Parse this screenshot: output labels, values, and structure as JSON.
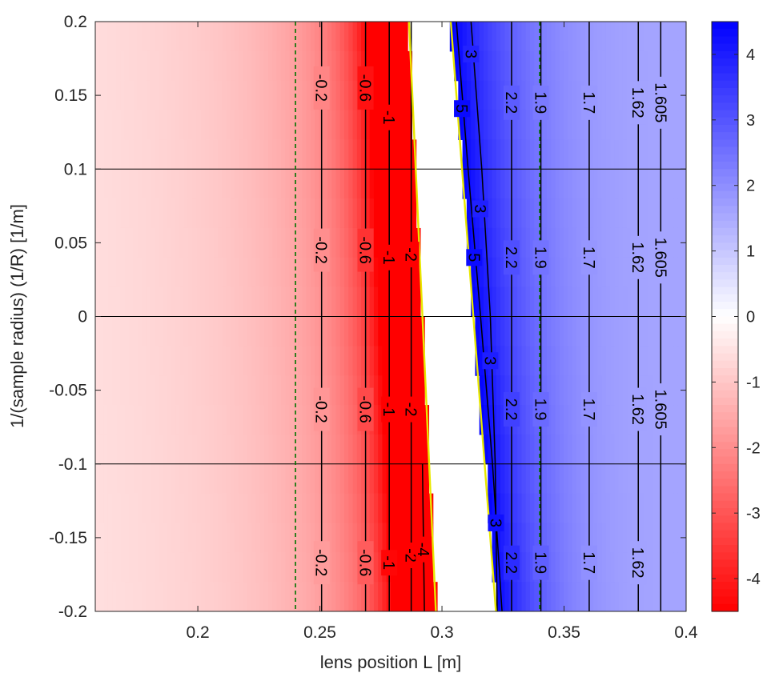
{
  "chart_data": {
    "type": "heatmap",
    "xlabel": "lens position L  [m]",
    "ylabel": "1/(sample radius) (1/R)  [1/m]",
    "xlim": [
      0.158,
      0.4
    ],
    "ylim": [
      -0.2,
      0.2
    ],
    "x_ticks": [
      0.2,
      0.25,
      0.3,
      0.35,
      0.4
    ],
    "x_tick_labels": [
      "0.2",
      "0.25",
      "0.3",
      "0.35",
      "0.4"
    ],
    "y_ticks": [
      0.2,
      0.15,
      0.1,
      0.05,
      0,
      -0.05,
      -0.1,
      -0.15,
      -0.2
    ],
    "y_tick_labels": [
      "0.2",
      "0.15",
      "0.1",
      "0.05",
      "0",
      "-0.05",
      "-0.1",
      "-0.15",
      "-0.2"
    ],
    "colorbar": {
      "min": -4.5,
      "max": 4.5,
      "ticks": [
        4,
        3,
        2,
        1,
        0,
        -1,
        -2,
        -3,
        -4
      ],
      "tick_labels": [
        "4",
        "3",
        "2",
        "1",
        "0",
        "-1",
        "-2",
        "-3",
        "-4"
      ],
      "colors": {
        "negative": "#ff0000",
        "zero": "#ffffff",
        "positive": "#0000ff"
      }
    },
    "horizontal_reference_lines": [
      0.1,
      0,
      -0.1
    ],
    "vertical_dashed_lines": [
      0.24,
      0.34
    ],
    "singular_boundaries": [
      {
        "points": [
          [
            0.2865,
            0.2
          ],
          [
            0.2975,
            -0.2
          ]
        ],
        "color": "#e8e800"
      },
      {
        "points": [
          [
            0.3036,
            0.2
          ],
          [
            0.3221,
            -0.2
          ]
        ],
        "color": "#e8e800"
      }
    ],
    "contour_levels_negative": [
      -0.2,
      -0.6,
      -1,
      -2,
      -4
    ],
    "contour_levels_positive": [
      5,
      3,
      2.2,
      1.9,
      1.7,
      1.62,
      1.605
    ],
    "contour_lines": [
      {
        "points": [
          [
            0.2507,
            0.2
          ],
          [
            0.2507,
            -0.2
          ]
        ]
      },
      {
        "points": [
          [
            0.2687,
            0.2
          ],
          [
            0.2687,
            -0.2
          ]
        ]
      },
      {
        "points": [
          [
            0.2784,
            0.2
          ],
          [
            0.2784,
            -0.2
          ]
        ]
      },
      {
        "points": [
          [
            0.2874,
            0.2
          ],
          [
            0.2874,
            -0.2
          ]
        ]
      },
      {
        "points": [
          [
            0.292,
            -0.1
          ],
          [
            0.2928,
            -0.2
          ]
        ]
      },
      {
        "points": [
          [
            0.3059,
            0.2
          ],
          [
            0.3107,
            0.1
          ],
          [
            0.3158,
            0
          ],
          [
            0.3207,
            -0.1
          ],
          [
            0.3246,
            -0.2
          ]
        ]
      },
      {
        "points": [
          [
            0.3119,
            0.2
          ],
          [
            0.3163,
            0.1
          ],
          [
            0.3198,
            0
          ],
          [
            0.3218,
            -0.1
          ],
          [
            0.3226,
            -0.2
          ]
        ]
      },
      {
        "points": [
          [
            0.3285,
            0.2
          ],
          [
            0.3285,
            -0.2
          ]
        ]
      },
      {
        "points": [
          [
            0.3405,
            0.2
          ],
          [
            0.3405,
            -0.2
          ]
        ]
      },
      {
        "points": [
          [
            0.3603,
            0.2
          ],
          [
            0.3603,
            -0.2
          ]
        ]
      },
      {
        "points": [
          [
            0.3804,
            0.2
          ],
          [
            0.3804,
            -0.2
          ]
        ]
      },
      {
        "points": [
          [
            0.3896,
            0.2
          ],
          [
            0.3896,
            -0.2
          ]
        ]
      }
    ],
    "contour_labels": [
      {
        "text": "-0.2",
        "x": 0.2507,
        "y": 0.155
      },
      {
        "text": "-0.6",
        "x": 0.2687,
        "y": 0.155
      },
      {
        "text": "-1",
        "x": 0.2784,
        "y": 0.135
      },
      {
        "text": "3",
        "x": 0.3119,
        "y": 0.178
      },
      {
        "text": "5",
        "x": 0.3082,
        "y": 0.141
      },
      {
        "text": "2.2",
        "x": 0.3285,
        "y": 0.145
      },
      {
        "text": "1.9",
        "x": 0.3405,
        "y": 0.145
      },
      {
        "text": "1.7",
        "x": 0.3603,
        "y": 0.145
      },
      {
        "text": "1.62",
        "x": 0.3804,
        "y": 0.145
      },
      {
        "text": "1.605",
        "x": 0.3896,
        "y": 0.145
      },
      {
        "text": "3",
        "x": 0.3157,
        "y": 0.073
      },
      {
        "text": "-0.2",
        "x": 0.2507,
        "y": 0.045
      },
      {
        "text": "-0.6",
        "x": 0.2687,
        "y": 0.045
      },
      {
        "text": "-1",
        "x": 0.2784,
        "y": 0.04
      },
      {
        "text": "-2",
        "x": 0.2874,
        "y": 0.042
      },
      {
        "text": "5",
        "x": 0.3132,
        "y": 0.04
      },
      {
        "text": "2.2",
        "x": 0.3285,
        "y": 0.04
      },
      {
        "text": "1.9",
        "x": 0.3405,
        "y": 0.04
      },
      {
        "text": "1.7",
        "x": 0.3603,
        "y": 0.04
      },
      {
        "text": "1.62",
        "x": 0.3804,
        "y": 0.04
      },
      {
        "text": "1.605",
        "x": 0.3896,
        "y": 0.04
      },
      {
        "text": "3",
        "x": 0.3198,
        "y": -0.03
      },
      {
        "text": "-0.2",
        "x": 0.2507,
        "y": -0.063
      },
      {
        "text": "-0.6",
        "x": 0.2687,
        "y": -0.063
      },
      {
        "text": "-1",
        "x": 0.2784,
        "y": -0.063
      },
      {
        "text": "-2",
        "x": 0.2874,
        "y": -0.063
      },
      {
        "text": "2.2",
        "x": 0.3285,
        "y": -0.063
      },
      {
        "text": "1.9",
        "x": 0.3405,
        "y": -0.063
      },
      {
        "text": "1.7",
        "x": 0.3603,
        "y": -0.063
      },
      {
        "text": "1.62",
        "x": 0.3804,
        "y": -0.063
      },
      {
        "text": "1.605",
        "x": 0.3896,
        "y": -0.063
      },
      {
        "text": "3",
        "x": 0.3221,
        "y": -0.14
      },
      {
        "text": "-0.2",
        "x": 0.2507,
        "y": -0.167
      },
      {
        "text": "-0.6",
        "x": 0.2687,
        "y": -0.167
      },
      {
        "text": "-1",
        "x": 0.2784,
        "y": -0.167
      },
      {
        "text": "-2",
        "x": 0.2874,
        "y": -0.162
      },
      {
        "text": "-4",
        "x": 0.2925,
        "y": -0.158
      },
      {
        "text": "2.2",
        "x": 0.3285,
        "y": -0.167
      },
      {
        "text": "1.9",
        "x": 0.3405,
        "y": -0.167
      },
      {
        "text": "1.7",
        "x": 0.3603,
        "y": -0.167
      },
      {
        "text": "1.62",
        "x": 0.3804,
        "y": -0.167
      }
    ]
  }
}
